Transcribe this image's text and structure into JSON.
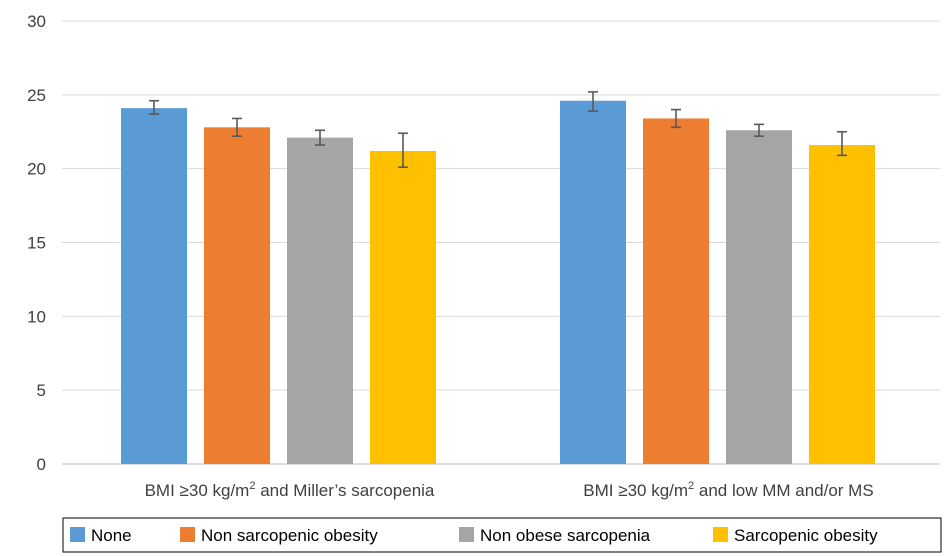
{
  "chart_data": {
    "type": "bar",
    "categories": [
      [
        "BMI ≥30 kg/m",
        "2",
        " and Miller’s sarcopenia"
      ],
      [
        "BMI ≥30 kg/m",
        "2",
        " and low MM and/or MS"
      ]
    ],
    "series": [
      {
        "name": "None",
        "color": "#5B9BD5",
        "values": [
          24.1,
          24.6
        ],
        "err_low": [
          23.7,
          23.9
        ],
        "err_high": [
          24.6,
          25.2
        ]
      },
      {
        "name": "Non sarcopenic obesity",
        "color": "#ED7D31",
        "values": [
          22.8,
          23.4
        ],
        "err_low": [
          22.2,
          22.8
        ],
        "err_high": [
          23.4,
          24.0
        ]
      },
      {
        "name": "Non obese sarcopenia",
        "color": "#A5A5A5",
        "values": [
          22.1,
          22.6
        ],
        "err_low": [
          21.6,
          22.2
        ],
        "err_high": [
          22.6,
          23.0
        ]
      },
      {
        "name": "Sarcopenic obesity",
        "color": "#FFC000",
        "values": [
          21.2,
          21.6
        ],
        "err_low": [
          20.1,
          20.9
        ],
        "err_high": [
          22.4,
          22.5
        ]
      }
    ],
    "ylim": [
      0,
      30
    ],
    "yticks": [
      0,
      5,
      10,
      15,
      20,
      25,
      30
    ],
    "grid": true,
    "legend": "bottom",
    "title": "",
    "xlabel": "",
    "ylabel": ""
  }
}
